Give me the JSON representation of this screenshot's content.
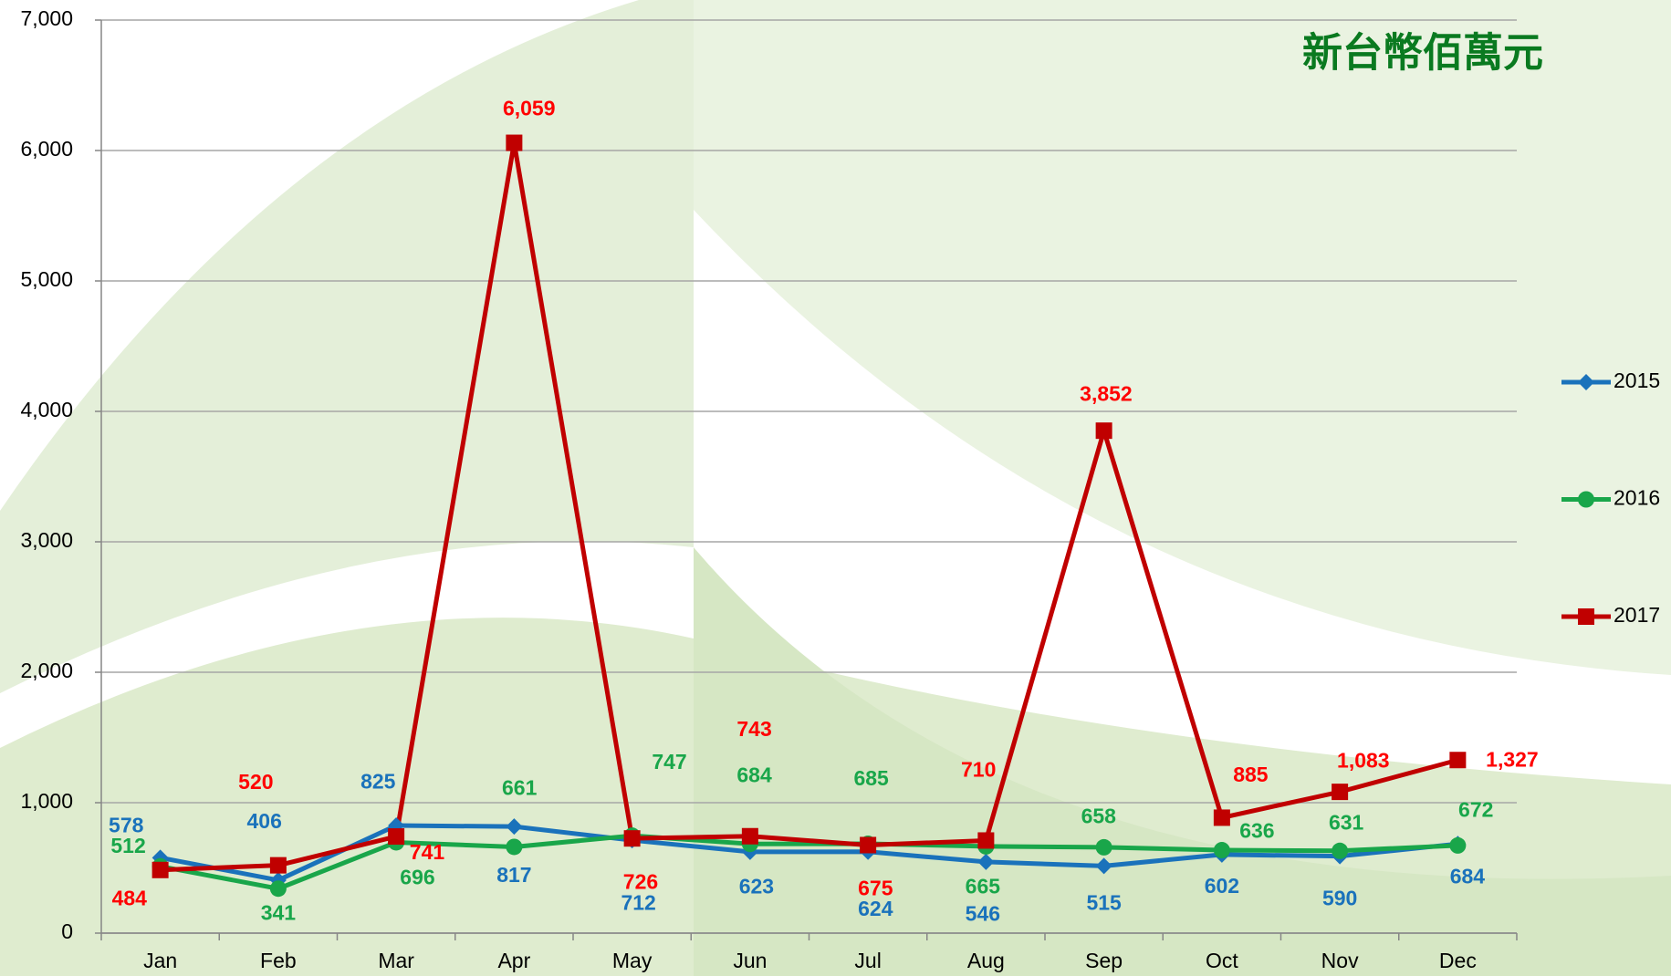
{
  "chart_data": {
    "type": "line",
    "title": "新台幣佰萬元",
    "categories": [
      "Jan",
      "Feb",
      "Mar",
      "Apr",
      "May",
      "Jun",
      "Jul",
      "Aug",
      "Sep",
      "Oct",
      "Nov",
      "Dec"
    ],
    "series": [
      {
        "name": "2015",
        "color": "#1a72bb",
        "marker": "diamond",
        "values": [
          578,
          406,
          825,
          817,
          712,
          623,
          624,
          546,
          515,
          602,
          590,
          684
        ]
      },
      {
        "name": "2016",
        "color": "#19a64a",
        "marker": "circle",
        "values": [
          512,
          341,
          696,
          661,
          747,
          684,
          685,
          665,
          658,
          636,
          631,
          672
        ]
      },
      {
        "name": "2017",
        "color": "#c00000",
        "label_color": "#ff0000",
        "marker": "square",
        "values": [
          484,
          520,
          741,
          6059,
          726,
          743,
          675,
          710,
          3852,
          885,
          1083,
          1327
        ],
        "value_labels": [
          "484",
          "520",
          "741",
          "6,059",
          "726",
          "743",
          "675",
          "710",
          "3,852",
          "885",
          "1,083",
          "1,327"
        ]
      }
    ],
    "ylim": [
      0,
      7000
    ],
    "yticks": [
      0,
      {
        "value": 1000,
        "label": "1,000"
      },
      {
        "value": 2000,
        "label": "2,000"
      },
      {
        "value": 3000,
        "label": "3,000"
      },
      {
        "value": 4000,
        "label": "4,000"
      },
      {
        "value": 5000,
        "label": "5,000"
      },
      {
        "value": 6000,
        "label": "6,000"
      },
      {
        "value": 7000,
        "label": "7,000"
      }
    ],
    "grid": true,
    "legend": "right"
  }
}
